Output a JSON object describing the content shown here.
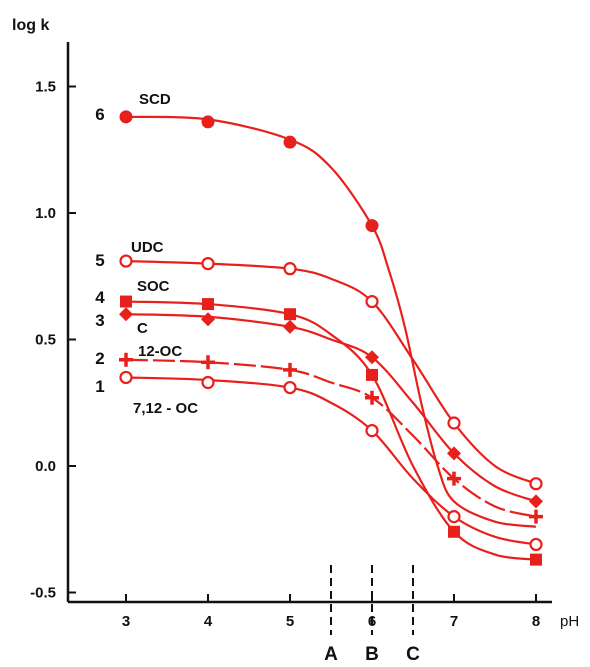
{
  "chart_data": {
    "type": "line",
    "ylabel": "log k",
    "xlabel": "pH",
    "xlim": [
      2.5,
      8.3
    ],
    "ylim": [
      -0.5,
      1.6
    ],
    "x_ticks": [
      "3",
      "4",
      "5",
      "6",
      "7",
      "8"
    ],
    "y_ticks": [
      "1.5",
      "1.0",
      "0.5",
      "0.0",
      "-0.5"
    ],
    "colors": {
      "series": "#e8201c",
      "axis": "#111111"
    },
    "reference_lines": [
      {
        "label": "A",
        "x": 5.5
      },
      {
        "label": "B",
        "x": 6.0
      },
      {
        "label": "C",
        "x": 6.5
      }
    ],
    "series": [
      {
        "number": "6",
        "name": "SCD",
        "marker": "filled-circle",
        "x": [
          3,
          4,
          5,
          6,
          7,
          8
        ],
        "y": [
          1.38,
          1.36,
          1.28,
          0.95,
          null,
          null
        ],
        "curve": [
          [
            3,
            1.38
          ],
          [
            4,
            1.37
          ],
          [
            5,
            1.29
          ],
          [
            5.5,
            1.18
          ],
          [
            6,
            0.95
          ],
          [
            6.2,
            0.78
          ],
          [
            6.4,
            0.55
          ],
          [
            6.6,
            0.25
          ],
          [
            6.8,
            0.0
          ],
          [
            7,
            -0.14
          ],
          [
            7.5,
            -0.22
          ],
          [
            8,
            -0.24
          ]
        ]
      },
      {
        "number": "5",
        "name": "UDC",
        "marker": "open-circle",
        "x": [
          3,
          4,
          5,
          6,
          7,
          8
        ],
        "y": [
          0.81,
          0.8,
          0.78,
          0.65,
          0.17,
          -0.07
        ],
        "curve": [
          [
            3,
            0.81
          ],
          [
            4,
            0.8
          ],
          [
            5,
            0.78
          ],
          [
            5.5,
            0.74
          ],
          [
            6,
            0.65
          ],
          [
            6.5,
            0.42
          ],
          [
            7,
            0.17
          ],
          [
            7.5,
            0.0
          ],
          [
            8,
            -0.07
          ]
        ]
      },
      {
        "number": "4",
        "name": "SOC",
        "marker": "filled-square",
        "x": [
          3,
          4,
          5,
          6,
          7,
          8
        ],
        "y": [
          0.65,
          0.64,
          0.6,
          0.36,
          -0.26,
          -0.37
        ],
        "curve": [
          [
            3,
            0.65
          ],
          [
            4,
            0.64
          ],
          [
            5,
            0.6
          ],
          [
            5.5,
            0.52
          ],
          [
            6,
            0.36
          ],
          [
            6.5,
            0.0
          ],
          [
            7,
            -0.26
          ],
          [
            7.5,
            -0.35
          ],
          [
            8,
            -0.37
          ]
        ]
      },
      {
        "number": "3",
        "name": "C",
        "marker": "filled-diamond",
        "x": [
          3,
          4,
          5,
          6,
          7,
          8
        ],
        "y": [
          0.6,
          0.58,
          0.55,
          0.43,
          0.05,
          -0.14
        ],
        "curve": [
          [
            3,
            0.6
          ],
          [
            4,
            0.59
          ],
          [
            5,
            0.55
          ],
          [
            5.5,
            0.5
          ],
          [
            6,
            0.43
          ],
          [
            6.5,
            0.25
          ],
          [
            7,
            0.05
          ],
          [
            7.5,
            -0.08
          ],
          [
            8,
            -0.14
          ]
        ]
      },
      {
        "number": "2",
        "name": "12-OC",
        "marker": "plus",
        "x": [
          3,
          4,
          5,
          6,
          7,
          8
        ],
        "y": [
          0.42,
          0.41,
          0.38,
          0.27,
          -0.05,
          -0.2
        ],
        "curve": [
          [
            3,
            0.42
          ],
          [
            4,
            0.41
          ],
          [
            5,
            0.38
          ],
          [
            5.5,
            0.33
          ],
          [
            6,
            0.27
          ],
          [
            6.5,
            0.12
          ],
          [
            7,
            -0.05
          ],
          [
            7.5,
            -0.16
          ],
          [
            8,
            -0.2
          ]
        ]
      },
      {
        "number": "1",
        "name": "7,12 - OC",
        "marker": "open-circle",
        "x": [
          3,
          4,
          5,
          6,
          7,
          8
        ],
        "y": [
          0.35,
          0.33,
          0.31,
          0.14,
          -0.2,
          -0.31
        ],
        "curve": [
          [
            3,
            0.35
          ],
          [
            4,
            0.34
          ],
          [
            5,
            0.31
          ],
          [
            5.5,
            0.25
          ],
          [
            6,
            0.14
          ],
          [
            6.5,
            -0.05
          ],
          [
            7,
            -0.2
          ],
          [
            7.5,
            -0.28
          ],
          [
            8,
            -0.31
          ]
        ]
      }
    ]
  }
}
